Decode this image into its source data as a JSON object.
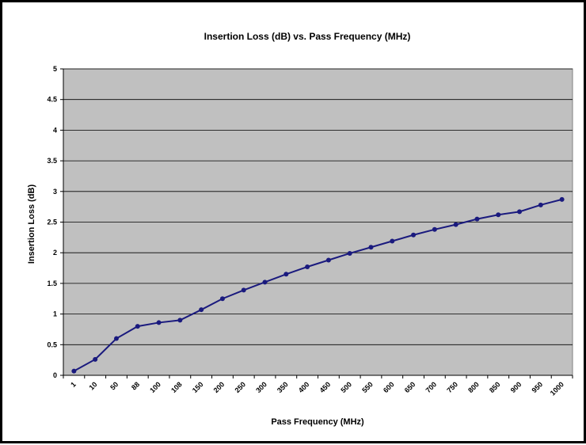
{
  "chart_data": {
    "type": "line",
    "title": "Insertion Loss (dB) vs. Pass Frequency (MHz)",
    "xlabel": "Pass Frequency (MHz)",
    "ylabel": "Insertion Loss (dB)",
    "categories": [
      "1",
      "10",
      "50",
      "88",
      "100",
      "108",
      "150",
      "200",
      "250",
      "300",
      "350",
      "400",
      "450",
      "500",
      "550",
      "600",
      "650",
      "700",
      "750",
      "800",
      "850",
      "900",
      "950",
      "1000"
    ],
    "series": [
      {
        "values": [
          0.07,
          0.26,
          0.6,
          0.8,
          0.86,
          0.9,
          1.07,
          1.25,
          1.39,
          1.52,
          1.65,
          1.77,
          1.88,
          1.99,
          2.09,
          2.19,
          2.29,
          2.38,
          2.46,
          2.55,
          2.62,
          2.67,
          2.78,
          2.87
        ],
        "color": "#1a1a7e"
      }
    ],
    "ylim": [
      0,
      5
    ],
    "yticks": [
      "0",
      "0.5",
      "1",
      "1.5",
      "2",
      "2.5",
      "3",
      "3.5",
      "4",
      "4.5",
      "5"
    ],
    "plot_background": "#c0c0c0",
    "grid": true,
    "legend": "none"
  }
}
